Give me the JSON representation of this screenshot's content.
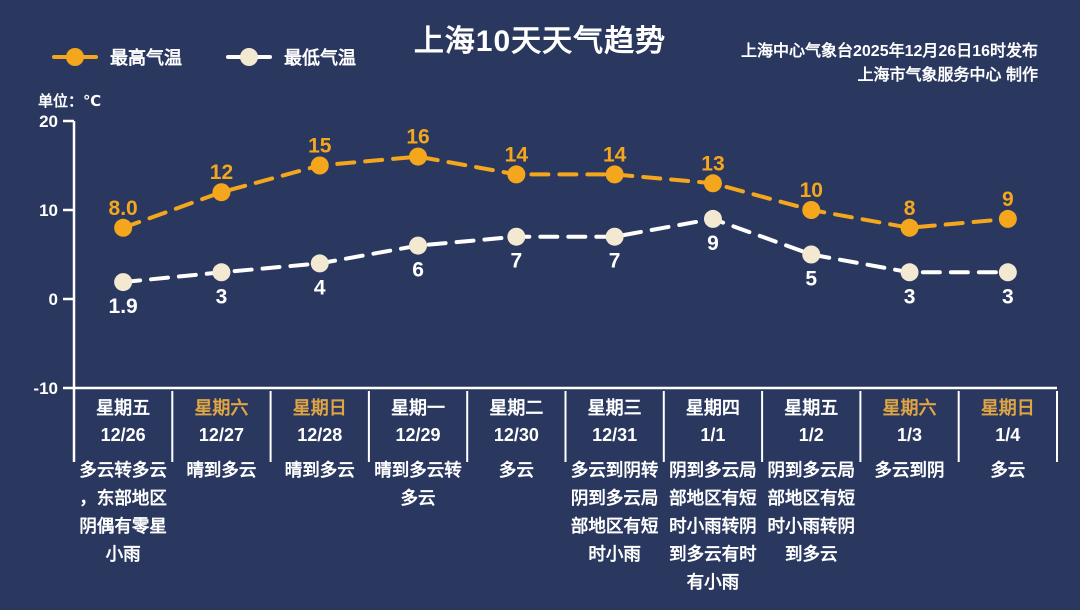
{
  "header": {
    "title": "上海10天天气趋势",
    "source_line1": "上海中心气象台2025年12月26日16时发布",
    "source_line2": "上海市气象服务中心 制作",
    "unit_label": "单位：℃"
  },
  "colors": {
    "background": "#2a3860",
    "accent_orange": "#f4a71d",
    "cream_marker": "#f3e8d2",
    "white": "#ffffff",
    "weekend_text": "#dfa545"
  },
  "chart_data": {
    "type": "line",
    "title": "上海10天天气趋势",
    "unit": "℃",
    "ylim": [
      -10,
      20
    ],
    "yticks": [
      20,
      10,
      0,
      -10
    ],
    "grid": false,
    "legend_position": "top-left",
    "categories": [
      {
        "weekday": "星期五",
        "date": "12/26",
        "weekend": false,
        "desc": "多云转多云，东部地区阴偶有零星小雨"
      },
      {
        "weekday": "星期六",
        "date": "12/27",
        "weekend": true,
        "desc": "晴到多云"
      },
      {
        "weekday": "星期日",
        "date": "12/28",
        "weekend": true,
        "desc": "晴到多云"
      },
      {
        "weekday": "星期一",
        "date": "12/29",
        "weekend": false,
        "desc": "晴到多云转多云"
      },
      {
        "weekday": "星期二",
        "date": "12/30",
        "weekend": false,
        "desc": "多云"
      },
      {
        "weekday": "星期三",
        "date": "12/31",
        "weekend": false,
        "desc": "多云到阴转阴到多云局部地区有短时小雨"
      },
      {
        "weekday": "星期四",
        "date": "1/1",
        "weekend": false,
        "desc": "阴到多云局部地区有短时小雨转阴到多云有时有小雨"
      },
      {
        "weekday": "星期五",
        "date": "1/2",
        "weekend": false,
        "desc": "阴到多云局部地区有短时小雨转阴到多云"
      },
      {
        "weekday": "星期六",
        "date": "1/3",
        "weekend": true,
        "desc": "多云到阴"
      },
      {
        "weekday": "星期日",
        "date": "1/4",
        "weekend": true,
        "desc": "多云"
      }
    ],
    "series": [
      {
        "name": "最高气温",
        "line_color": "#f4a71d",
        "marker_color": "#f4a71d",
        "label_color": "#f4a71d",
        "label_position": "above",
        "values": [
          8.0,
          12,
          15,
          16,
          14,
          14,
          13,
          10,
          8,
          9
        ],
        "labels": [
          "8.0",
          "12",
          "15",
          "16",
          "14",
          "14",
          "13",
          "10",
          "8",
          "9"
        ]
      },
      {
        "name": "最低气温",
        "line_color": "#ffffff",
        "marker_color": "#f3e8d2",
        "label_color": "#ffffff",
        "label_position": "below",
        "values": [
          1.9,
          3,
          4,
          6,
          7,
          7,
          9,
          5,
          3,
          3
        ],
        "labels": [
          "1.9",
          "3",
          "4",
          "6",
          "7",
          "7",
          "9",
          "5",
          "3",
          "3"
        ]
      }
    ]
  }
}
